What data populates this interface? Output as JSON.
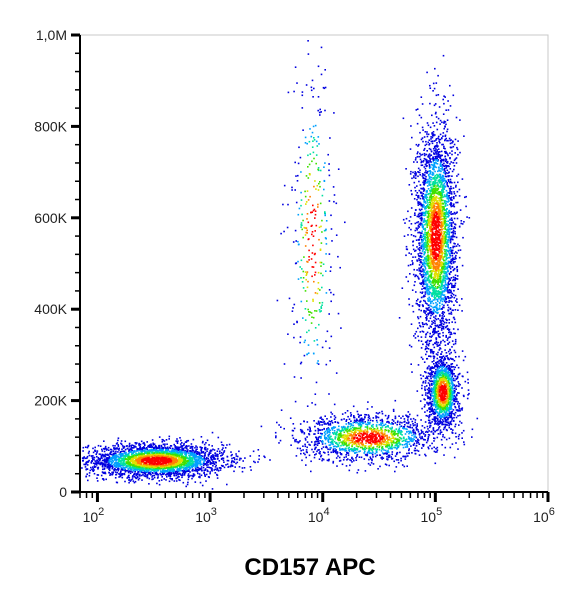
{
  "chart_data": {
    "type": "scatter",
    "title": "",
    "xlabel": "CD157 APC",
    "ylabel": "",
    "x_scale": "log",
    "xlim": [
      70,
      1000000
    ],
    "ylim": [
      0,
      1000000
    ],
    "grid": false,
    "legend": "none",
    "x_ticks": [
      {
        "value": 100,
        "base": "10",
        "exp": "2"
      },
      {
        "value": 1000,
        "base": "10",
        "exp": "3"
      },
      {
        "value": 10000,
        "base": "10",
        "exp": "4"
      },
      {
        "value": 100000,
        "base": "10",
        "exp": "5"
      },
      {
        "value": 1000000,
        "base": "10",
        "exp": "6"
      }
    ],
    "y_ticks": [
      {
        "value": 0,
        "label": "0"
      },
      {
        "value": 200000,
        "label": "200K"
      },
      {
        "value": 400000,
        "label": "400K"
      },
      {
        "value": 600000,
        "label": "600K"
      },
      {
        "value": 800000,
        "label": "800K"
      },
      {
        "value": 1000000,
        "label": "1,0M"
      }
    ],
    "density_colors": [
      "#0000e0",
      "#00a0ff",
      "#00e0a0",
      "#40e000",
      "#e0e000",
      "#ff8000",
      "#ff0000"
    ],
    "populations": [
      {
        "x_center": 330,
        "x_sd_log10": 0.3,
        "y_center": 70000,
        "y_sd": 18000,
        "count": 3000
      },
      {
        "x_center": 100000,
        "x_sd_log10": 0.09,
        "y_center": 560000,
        "y_sd": 120000,
        "count": 3200
      },
      {
        "x_center": 115000,
        "x_sd_log10": 0.07,
        "y_center": 220000,
        "y_sd": 40000,
        "count": 1300
      },
      {
        "x_center": 25000,
        "x_sd_log10": 0.3,
        "y_center": 120000,
        "y_sd": 25000,
        "count": 1500
      },
      {
        "x_center": 8000,
        "x_sd_log10": 0.1,
        "y_center": 550000,
        "y_sd": 200000,
        "count": 350
      }
    ]
  }
}
